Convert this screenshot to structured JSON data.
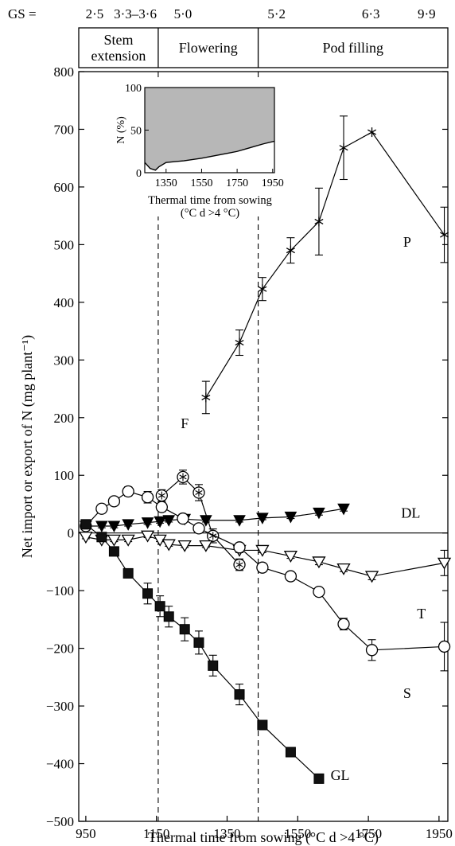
{
  "gs_row": {
    "prefix": "GS =",
    "labels": [
      {
        "text": "2·5",
        "x": 975
      },
      {
        "text": "3·3–3·6",
        "x": 1090
      },
      {
        "text": "5·0",
        "x": 1225
      },
      {
        "text": "5·2",
        "x": 1490
      },
      {
        "text": "6·3",
        "x": 1757
      },
      {
        "text": "9·9",
        "x": 1915
      }
    ]
  },
  "stages": [
    {
      "lines": [
        "Stem",
        "extension"
      ],
      "from": 930,
      "to": 1155
    },
    {
      "lines": [
        "Flowering"
      ],
      "from": 1155,
      "to": 1438
    },
    {
      "lines": [
        "Pod filling"
      ],
      "from": 1438,
      "to": 1975
    }
  ],
  "chart_data": [
    {
      "type": "line",
      "xlabel": "Thermal time from sowing (°C d >4 °C)",
      "ylabel": "Net import or export of N (mg plant⁻¹)",
      "xlim": [
        930,
        1975
      ],
      "ylim": [
        -500,
        800
      ],
      "xticks": [
        950,
        1150,
        1350,
        1550,
        1750,
        1950
      ],
      "yticks": [
        -500,
        -400,
        -300,
        -200,
        -100,
        0,
        100,
        200,
        300,
        400,
        500,
        600,
        700,
        800
      ],
      "vlines": [
        1155,
        1438
      ],
      "hline": 0,
      "series": [
        {
          "name": "P",
          "marker": "asterisk",
          "label_pos": [
            1860,
            505
          ],
          "x": [
            1290,
            1385,
            1450,
            1530,
            1610,
            1680,
            1760,
            1965
          ],
          "y": [
            235,
            330,
            423,
            490,
            540,
            668,
            695,
            517
          ],
          "err": [
            28,
            22,
            20,
            22,
            58,
            55,
            0,
            48
          ]
        },
        {
          "name": "F",
          "marker": "circle-asterisk",
          "label_pos": [
            1230,
            190
          ],
          "x": [
            1165,
            1225,
            1270,
            1310,
            1385
          ],
          "y": [
            65,
            97,
            70,
            -5,
            -55
          ],
          "err": [
            10,
            12,
            14,
            12,
            10
          ]
        },
        {
          "name": "DL",
          "marker": "triangle-down-filled",
          "label_pos": [
            1870,
            35
          ],
          "x": [
            950,
            995,
            1030,
            1070,
            1125,
            1160,
            1185,
            1230,
            1290,
            1385,
            1450,
            1530,
            1610,
            1680
          ],
          "y": [
            12,
            12,
            12,
            15,
            18,
            20,
            22,
            24,
            22,
            22,
            26,
            28,
            35,
            42
          ],
          "err": [
            3,
            3,
            3,
            3,
            3,
            3,
            3,
            3,
            3,
            3,
            3,
            3,
            4,
            4
          ]
        },
        {
          "name": "T",
          "marker": "triangle-down-open",
          "label_pos": [
            1900,
            -140
          ],
          "x": [
            950,
            995,
            1030,
            1070,
            1125,
            1160,
            1185,
            1230,
            1290,
            1385,
            1450,
            1530,
            1610,
            1680,
            1760,
            1965
          ],
          "y": [
            -7,
            -12,
            -12,
            -12,
            -5,
            -12,
            -20,
            -22,
            -22,
            -30,
            -30,
            -40,
            -50,
            -62,
            -75,
            -52
          ],
          "err": [
            3,
            3,
            3,
            3,
            3,
            3,
            3,
            3,
            3,
            4,
            4,
            4,
            5,
            5,
            6,
            22
          ]
        },
        {
          "name": "S",
          "marker": "circle-open",
          "label_pos": [
            1860,
            -278
          ],
          "x": [
            950,
            995,
            1030,
            1070,
            1125,
            1165,
            1225,
            1270,
            1385,
            1450,
            1530,
            1610,
            1680,
            1760,
            1965
          ],
          "y": [
            12,
            42,
            55,
            72,
            62,
            45,
            25,
            8,
            -25,
            -60,
            -75,
            -102,
            -158,
            -203,
            -197
          ],
          "err": [
            3,
            3,
            4,
            8,
            10,
            8,
            5,
            5,
            5,
            5,
            5,
            5,
            10,
            18,
            42
          ]
        },
        {
          "name": "GL",
          "marker": "square-filled",
          "label_pos": [
            1670,
            -420
          ],
          "x": [
            950,
            995,
            1030,
            1070,
            1125,
            1160,
            1185,
            1230,
            1270,
            1310,
            1385,
            1450,
            1530,
            1610
          ],
          "y": [
            15,
            -7,
            -32,
            -70,
            -105,
            -127,
            -145,
            -167,
            -190,
            -230,
            -280,
            -333,
            -380,
            -426
          ],
          "err": [
            3,
            3,
            3,
            5,
            18,
            18,
            18,
            20,
            20,
            18,
            18,
            5,
            5,
            5
          ]
        }
      ]
    },
    {
      "type": "area",
      "xlabel": "Thermal time from sowing",
      "xlabel2": "(°C d >4 °C)",
      "ylabel": "N (%)",
      "xlim": [
        1230,
        1960
      ],
      "ylim": [
        0,
        100
      ],
      "xticks": [
        1350,
        1550,
        1750,
        1950
      ],
      "yticks": [
        0,
        50,
        100
      ],
      "fill_color": "#b7b7b7",
      "series": [
        {
          "name": "",
          "x": [
            1230,
            1260,
            1290,
            1310,
            1350,
            1400,
            1450,
            1500,
            1550,
            1600,
            1650,
            1700,
            1750,
            1800,
            1850,
            1900,
            1960
          ],
          "y": [
            12,
            5,
            3,
            7,
            12,
            13,
            14,
            15.5,
            17,
            19,
            21,
            23,
            25,
            28,
            31,
            34,
            37
          ]
        }
      ]
    }
  ]
}
